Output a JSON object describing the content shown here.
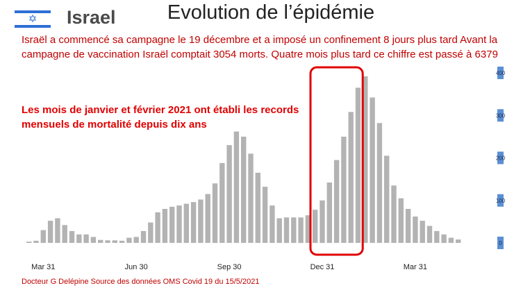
{
  "header": {
    "country": "Israel",
    "title": "Evolution de l’épidémie"
  },
  "flag": {
    "star": "✡",
    "color": "#2d6fd6"
  },
  "text": {
    "intro": "Israël a commencé sa campagne le 19 décembre et a imposé un confinement 8 jours plus tard Avant la campagne de vaccination Israël comptait 3054 morts. Quatre mois plus tard ce chiffre est passé à  6379",
    "highlight": "Les mois de janvier et février 2021 ont établi les records mensuels de mortalité depuis dix ans"
  },
  "footer": {
    "source": "Docteur G Delépine  Source des données OMS Covid 19 du 15/5/2021"
  },
  "colors": {
    "bar": "#b3b3b3",
    "highlight_box": "#e00000",
    "text_red": "#c00000",
    "ytick_bg": "#5b8fd4"
  },
  "chart_data": {
    "type": "bar",
    "title": "",
    "xlabel": "",
    "ylabel": "",
    "ylim": [
      0,
      400
    ],
    "yticks": [
      0,
      100,
      200,
      300,
      400
    ],
    "ytick_labels": [
      "0",
      "100",
      "200",
      "300",
      "400"
    ],
    "x_tick_labels": [
      {
        "label": "Mar 31",
        "index": 2
      },
      {
        "label": "Jun 30",
        "index": 15
      },
      {
        "label": "Sep 30",
        "index": 28
      },
      {
        "label": "Dec 31",
        "index": 41
      },
      {
        "label": "Mar 31",
        "index": 54
      }
    ],
    "highlight_range": [
      40,
      46
    ],
    "grid": false,
    "values": [
      3,
      5,
      30,
      52,
      58,
      42,
      28,
      20,
      20,
      14,
      7,
      6,
      6,
      5,
      12,
      14,
      28,
      48,
      72,
      80,
      85,
      88,
      92,
      96,
      102,
      115,
      140,
      188,
      230,
      262,
      250,
      210,
      165,
      132,
      88,
      58,
      60,
      60,
      60,
      65,
      78,
      100,
      142,
      195,
      250,
      308,
      365,
      392,
      342,
      282,
      205,
      135,
      105,
      80,
      62,
      52,
      40,
      28,
      20,
      12,
      8
    ]
  }
}
